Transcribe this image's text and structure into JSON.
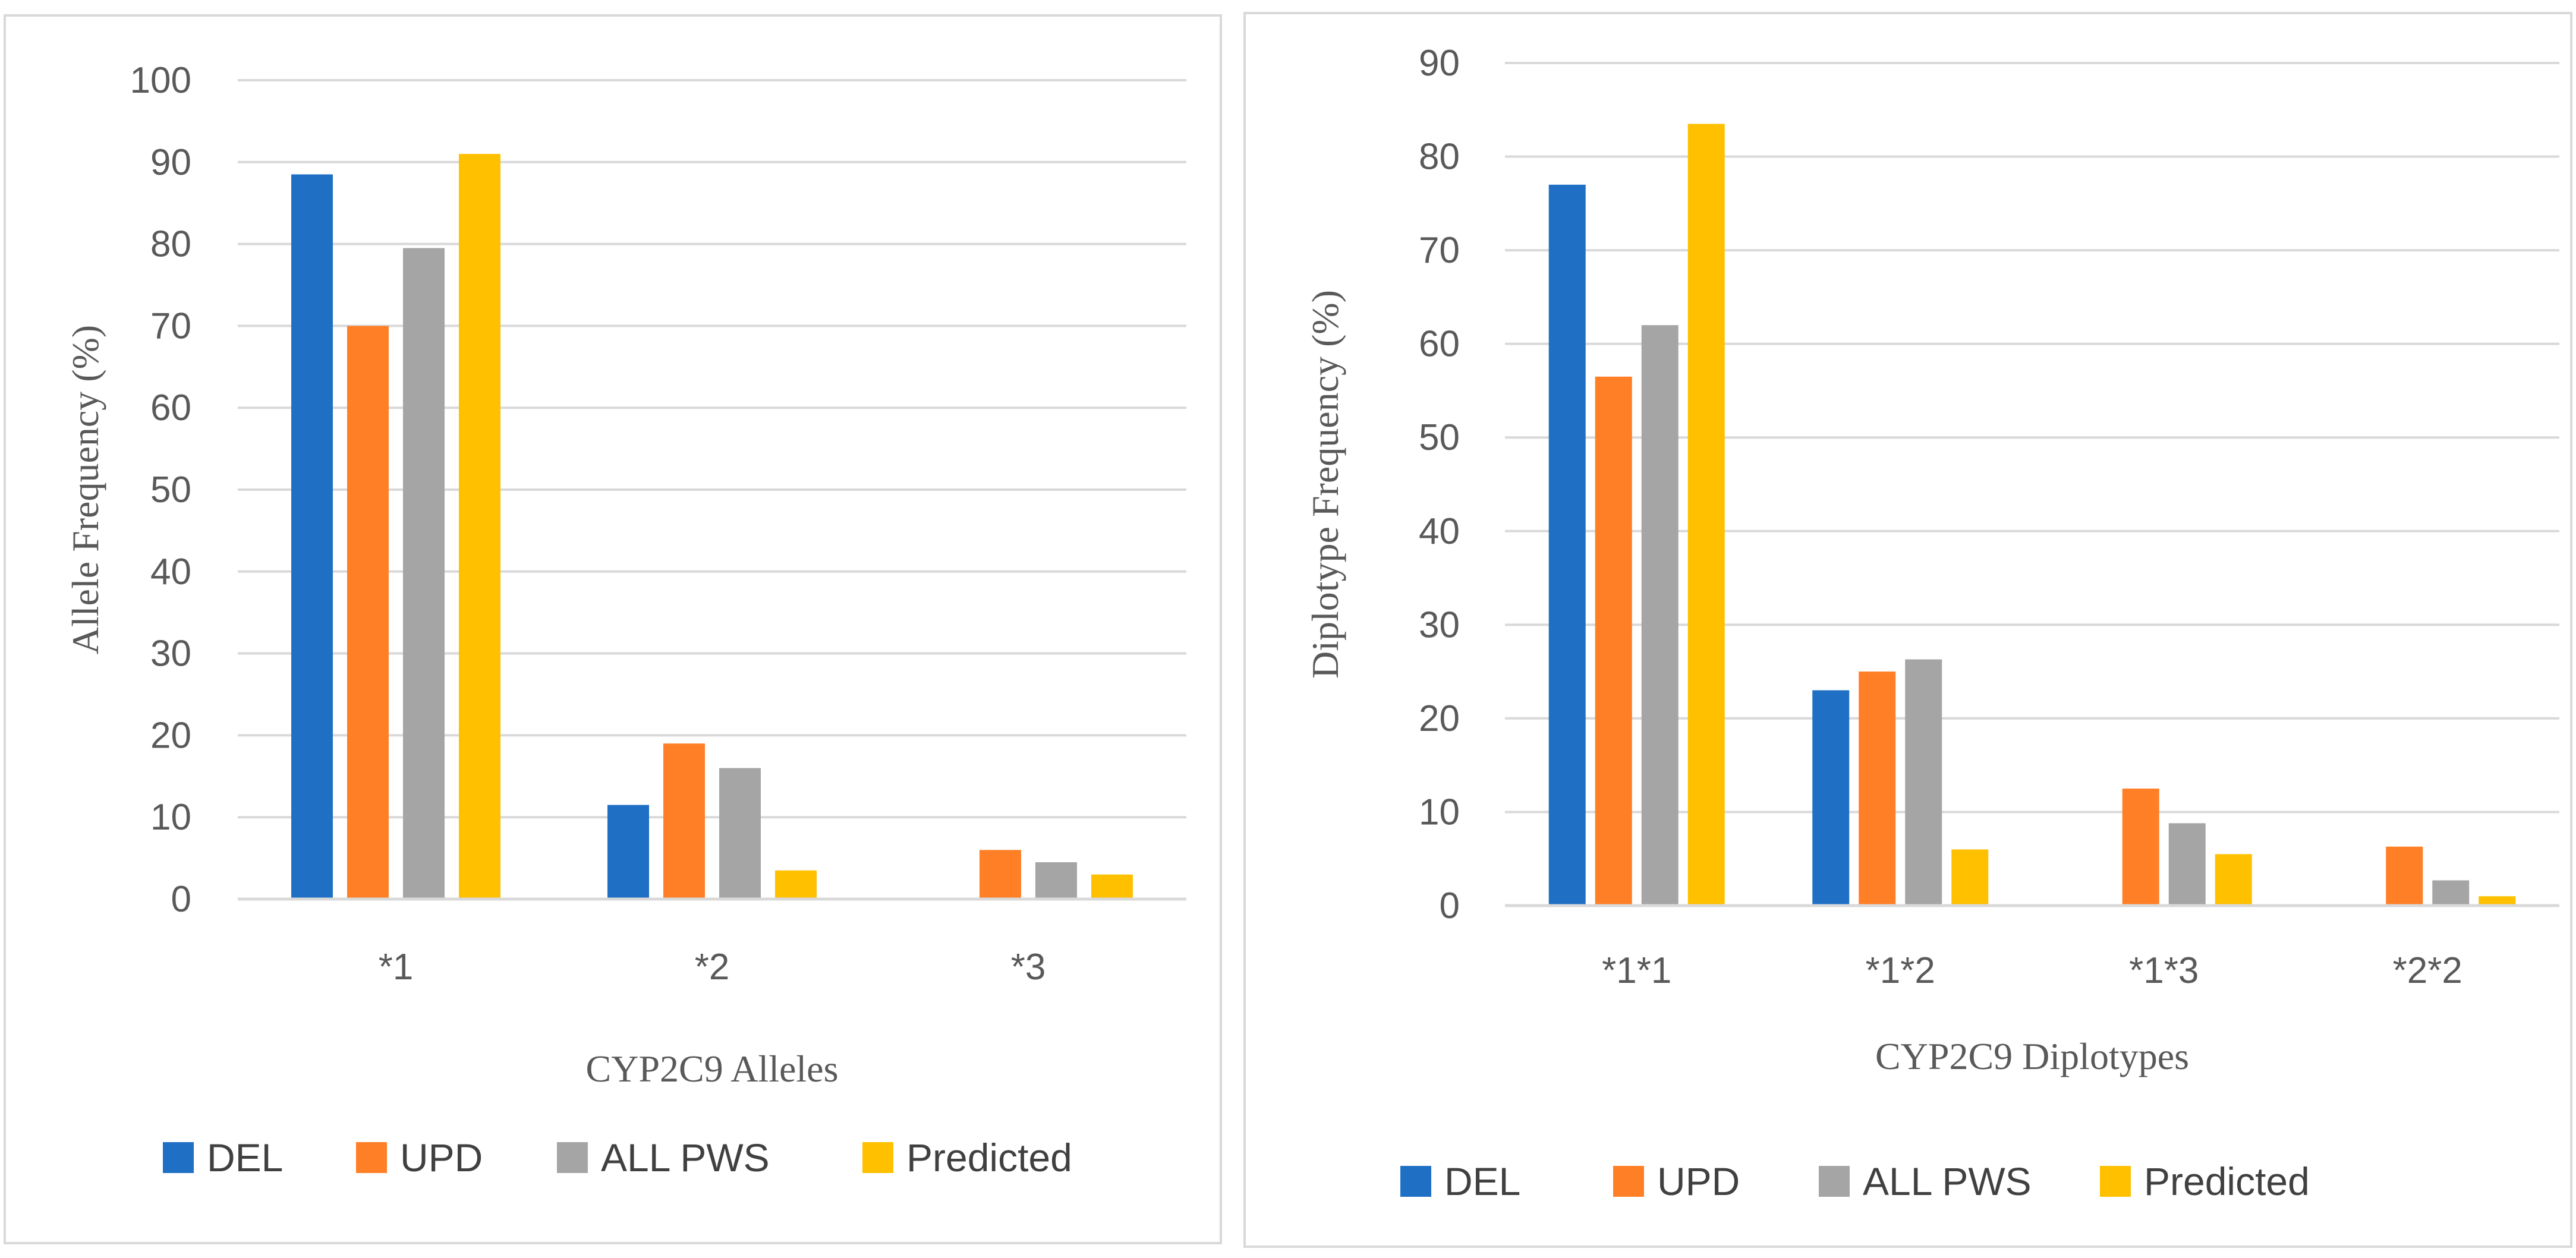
{
  "chart_data": [
    {
      "type": "bar",
      "title": "",
      "xlabel": "CYP2C9 Alleles",
      "ylabel": "Allele Frequency (%)",
      "ylim": [
        0,
        100
      ],
      "yticks": [
        0,
        10,
        20,
        30,
        40,
        50,
        60,
        70,
        80,
        90,
        100
      ],
      "categories": [
        "*1",
        "*2",
        "*3"
      ],
      "legend_position": "bottom",
      "series": [
        {
          "name": "DEL",
          "color": "#1f6fc5",
          "values": [
            88.5,
            11.5,
            0
          ]
        },
        {
          "name": "UPD",
          "color": "#ff7f27",
          "values": [
            70,
            19,
            6
          ]
        },
        {
          "name": "ALL PWS",
          "color": "#a5a5a5",
          "values": [
            79.5,
            16,
            4.5
          ]
        },
        {
          "name": "Predicted",
          "color": "#ffc000",
          "values": [
            91,
            3.5,
            3
          ]
        }
      ]
    },
    {
      "type": "bar",
      "title": "",
      "xlabel": "CYP2C9 Diplotypes",
      "ylabel": "Diplotype Frequency (%)",
      "ylim": [
        0,
        90
      ],
      "yticks": [
        0,
        10,
        20,
        30,
        40,
        50,
        60,
        70,
        80,
        90
      ],
      "categories": [
        "*1*1",
        "*1*2",
        "*1*3",
        "*2*2"
      ],
      "legend_position": "bottom",
      "series": [
        {
          "name": "DEL",
          "color": "#1f6fc5",
          "values": [
            77,
            23,
            0,
            0
          ]
        },
        {
          "name": "UPD",
          "color": "#ff7f27",
          "values": [
            56.5,
            25,
            12.5,
            6.3
          ]
        },
        {
          "name": "ALL PWS",
          "color": "#a5a5a5",
          "values": [
            62,
            26.3,
            8.8,
            2.7
          ]
        },
        {
          "name": "Predicted",
          "color": "#ffc000",
          "values": [
            83.5,
            6,
            5.5,
            1
          ]
        }
      ]
    }
  ]
}
